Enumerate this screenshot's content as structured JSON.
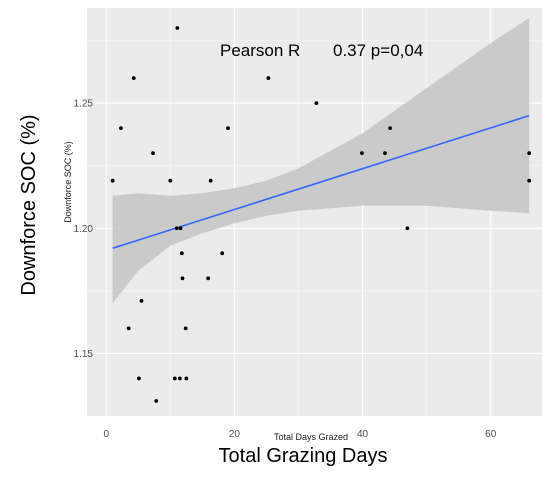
{
  "chart_data": {
    "type": "scatter",
    "annotation": {
      "label": "Pearson R",
      "stats": "0.37 p=0,04"
    },
    "inner_xlabel": "Total Days Grazed",
    "inner_ylabel": "Downforce SOC (%)",
    "outer_xlabel": "Total Grazing Days",
    "outer_ylabel": "Downforce SOC (%)",
    "xlim": [
      -3,
      68
    ],
    "ylim": [
      1.125,
      1.288
    ],
    "x_ticks": [
      {
        "value": 0,
        "label": "0"
      },
      {
        "value": 20,
        "label": "20"
      },
      {
        "value": 40,
        "label": "40"
      },
      {
        "value": 60,
        "label": "60"
      }
    ],
    "y_ticks": [
      {
        "value": 1.15,
        "label": "1.15"
      },
      {
        "value": 1.2,
        "label": "1.20"
      },
      {
        "value": 1.25,
        "label": "1.25"
      }
    ],
    "grid": true,
    "panel_background": "#ebebeb",
    "points": [
      {
        "x": 1,
        "y": 1.219
      },
      {
        "x": 2.3,
        "y": 1.24
      },
      {
        "x": 3.5,
        "y": 1.16
      },
      {
        "x": 4.3,
        "y": 1.26
      },
      {
        "x": 5.1,
        "y": 1.14
      },
      {
        "x": 5.5,
        "y": 1.171
      },
      {
        "x": 7.3,
        "y": 1.23
      },
      {
        "x": 7.8,
        "y": 1.131
      },
      {
        "x": 10,
        "y": 1.219
      },
      {
        "x": 10.7,
        "y": 1.14
      },
      {
        "x": 11,
        "y": 1.2
      },
      {
        "x": 11.1,
        "y": 1.28
      },
      {
        "x": 11.5,
        "y": 1.14
      },
      {
        "x": 11.6,
        "y": 1.2
      },
      {
        "x": 11.8,
        "y": 1.19
      },
      {
        "x": 11.9,
        "y": 1.18
      },
      {
        "x": 12.4,
        "y": 1.16
      },
      {
        "x": 12.5,
        "y": 1.14
      },
      {
        "x": 15.9,
        "y": 1.18
      },
      {
        "x": 16.3,
        "y": 1.219
      },
      {
        "x": 18.1,
        "y": 1.19
      },
      {
        "x": 19,
        "y": 1.24
      },
      {
        "x": 25.3,
        "y": 1.26
      },
      {
        "x": 32.8,
        "y": 1.25
      },
      {
        "x": 39.9,
        "y": 1.23
      },
      {
        "x": 43.5,
        "y": 1.23
      },
      {
        "x": 44.3,
        "y": 1.24
      },
      {
        "x": 47,
        "y": 1.2
      },
      {
        "x": 66,
        "y": 1.23
      },
      {
        "x": 66,
        "y": 1.219
      }
    ],
    "trend_line": {
      "color": "#3366ff",
      "x": [
        1,
        66
      ],
      "y": [
        1.192,
        1.245
      ]
    },
    "confidence_band": {
      "color": "#c7c7c7",
      "x": [
        1,
        5,
        10,
        15,
        20,
        25,
        30,
        35,
        40,
        45,
        50,
        55,
        60,
        66
      ],
      "lower": [
        1.17,
        1.183,
        1.193,
        1.198,
        1.202,
        1.205,
        1.207,
        1.208,
        1.209,
        1.209,
        1.209,
        1.208,
        1.207,
        1.206
      ],
      "upper": [
        1.213,
        1.214,
        1.213,
        1.214,
        1.216,
        1.219,
        1.224,
        1.231,
        1.238,
        1.247,
        1.256,
        1.265,
        1.274,
        1.284
      ]
    }
  }
}
